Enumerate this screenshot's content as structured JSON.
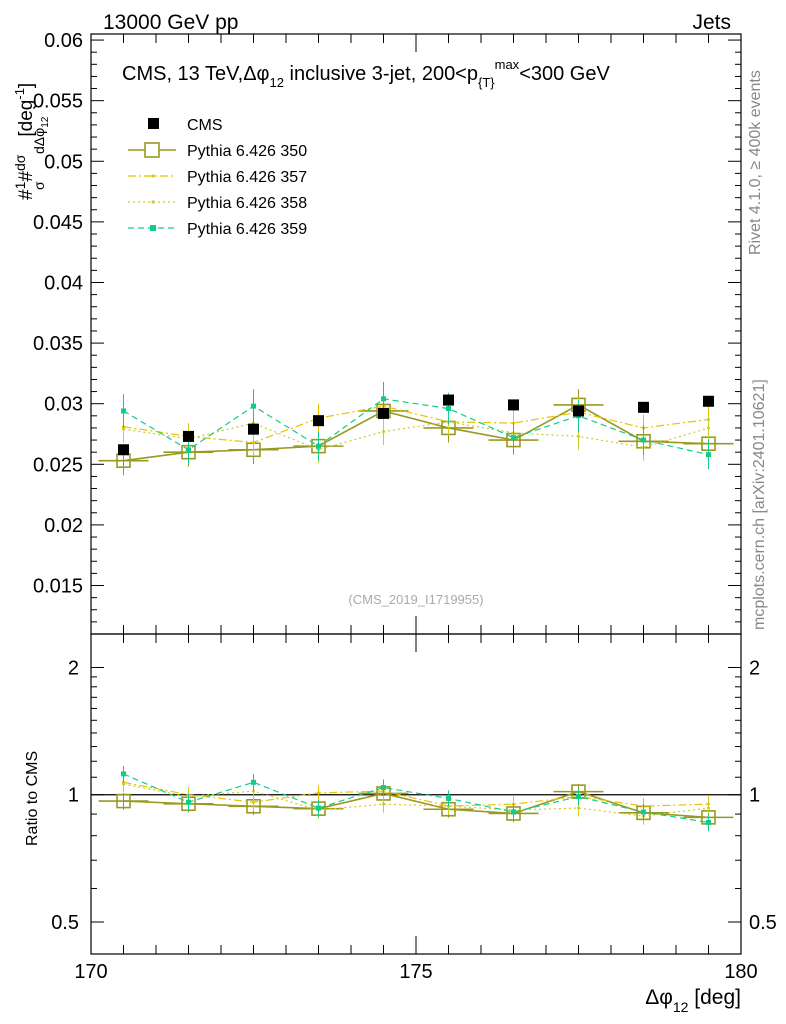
{
  "header": {
    "left": "13000 GeV pp",
    "right": "Jets"
  },
  "side_labels": {
    "rivet": "Rivet 4.1.0, ≥ 400k events",
    "mcplots": "mcplots.cern.ch [arXiv:2401.10621]"
  },
  "watermark": "(CMS_2019_I1719955)",
  "colors": {
    "cms": "#000000",
    "p350": "#999922",
    "p357": "#e6c200",
    "p358": "#cccc22",
    "p359": "#11cc88"
  },
  "chart_data": [
    {
      "type": "scatter",
      "panel": "main",
      "title": {
        "prefix": "CMS, 13 TeV,",
        "dphi": "Δφ",
        "sub12": "12",
        "mid": " inclusive 3-jet, 200<p",
        "subT": "{T}",
        "supmax": "max",
        "suffix": "<300 GeV"
      },
      "ylabel": {
        "n1": "#",
        "frac1": "1",
        "sigma": "σ",
        "n2": "#",
        "dsigma": "dσ",
        "ddphi": "dΔφ",
        "sub12": "12",
        "unit": "[deg",
        "sup": "-1",
        "close": "]"
      },
      "xlim": [
        170,
        180
      ],
      "ylim": [
        0.011,
        0.0605
      ],
      "yticks": [
        0.015,
        0.02,
        0.025,
        0.03,
        0.035,
        0.04,
        0.045,
        0.05,
        0.055,
        0.06
      ],
      "ytick_labels": [
        "0.015",
        "0.02",
        "0.025",
        "0.03",
        "0.035",
        "0.04",
        "0.045",
        "0.05",
        "0.055",
        "0.06"
      ],
      "x": [
        170.5,
        171.5,
        172.5,
        173.5,
        174.5,
        175.5,
        176.5,
        177.5,
        178.5,
        179.5
      ],
      "legend": {
        "position": "top-left",
        "entries": [
          "CMS",
          "Pythia 6.426 350",
          "Pythia 6.426 357",
          "Pythia 6.426 358",
          "Pythia 6.426 359"
        ]
      },
      "series": [
        {
          "name": "CMS",
          "key": "cms",
          "style": "marker",
          "values": [
            0.0262,
            0.0273,
            0.0279,
            0.0286,
            0.0292,
            0.0303,
            0.0299,
            0.0294,
            0.0297,
            0.0302
          ],
          "err": [
            0.0003,
            0.0003,
            0.0003,
            0.0003,
            0.0003,
            0.0003,
            0.0003,
            0.0003,
            0.0003,
            0.0003
          ]
        },
        {
          "name": "Pythia 6.426 350",
          "key": "p350",
          "style": "open-square",
          "values": [
            0.0253,
            0.026,
            0.0262,
            0.0265,
            0.0294,
            0.028,
            0.027,
            0.0299,
            0.0269,
            0.0267
          ],
          "err": [
            0.0012,
            0.0012,
            0.0012,
            0.0012,
            0.0012,
            0.0012,
            0.0012,
            0.0013,
            0.0012,
            0.0012
          ]
        },
        {
          "name": "Pythia 6.426 357",
          "key": "p357",
          "style": "dash-dot",
          "values": [
            0.0281,
            0.0273,
            0.0268,
            0.0288,
            0.0298,
            0.0285,
            0.0284,
            0.0293,
            0.028,
            0.0287
          ],
          "err": [
            0.0011,
            0.0011,
            0.0011,
            0.0012,
            0.0012,
            0.0011,
            0.0011,
            0.0012,
            0.0011,
            0.0012
          ]
        },
        {
          "name": "Pythia 6.426 358",
          "key": "p358",
          "style": "dotted",
          "values": [
            0.0279,
            0.0271,
            0.0284,
            0.0262,
            0.0277,
            0.0285,
            0.0276,
            0.0273,
            0.0264,
            0.028
          ],
          "err": [
            0.0011,
            0.0011,
            0.0011,
            0.0011,
            0.0011,
            0.0011,
            0.0011,
            0.0011,
            0.0011,
            0.0011
          ]
        },
        {
          "name": "Pythia 6.426 359",
          "key": "p359",
          "style": "dashed",
          "values": [
            0.0294,
            0.0262,
            0.0298,
            0.0265,
            0.0304,
            0.0296,
            0.0272,
            0.029,
            0.027,
            0.0258
          ],
          "err": [
            0.0014,
            0.0012,
            0.0014,
            0.0012,
            0.0014,
            0.0013,
            0.0012,
            0.0013,
            0.0012,
            0.0012
          ]
        }
      ]
    },
    {
      "type": "scatter",
      "panel": "ratio",
      "ylabel": "Ratio to CMS",
      "xlabel": {
        "dphi": "Δφ",
        "sub12": "12",
        "unit": " [deg]"
      },
      "xlim": [
        170,
        180
      ],
      "ylim": [
        0.42,
        2.4
      ],
      "yscale": "log",
      "xticks": [
        170,
        175,
        180
      ],
      "xtick_labels": [
        "170",
        "175",
        "180"
      ],
      "yticks": [
        0.5,
        1,
        2
      ],
      "ytick_labels": [
        "0.5",
        "1",
        "2"
      ],
      "reference_line": 1,
      "x": [
        170.5,
        171.5,
        172.5,
        173.5,
        174.5,
        175.5,
        176.5,
        177.5,
        178.5,
        179.5
      ],
      "series": [
        {
          "name": "Pythia 6.426 350",
          "key": "p350",
          "style": "open-square",
          "values": [
            0.966,
            0.952,
            0.939,
            0.927,
            1.007,
            0.924,
            0.903,
            1.017,
            0.906,
            0.884
          ],
          "err": [
            0.045,
            0.044,
            0.043,
            0.042,
            0.045,
            0.042,
            0.042,
            0.045,
            0.041,
            0.041
          ]
        },
        {
          "name": "Pythia 6.426 357",
          "key": "p357",
          "style": "dash-dot",
          "values": [
            1.07,
            1.0,
            0.96,
            1.01,
            1.02,
            0.94,
            0.95,
            0.99,
            0.94,
            0.95
          ],
          "err": [
            0.045,
            0.044,
            0.043,
            0.043,
            0.044,
            0.042,
            0.042,
            0.043,
            0.042,
            0.042
          ]
        },
        {
          "name": "Pythia 6.426 358",
          "key": "p358",
          "style": "dotted",
          "values": [
            1.06,
            0.99,
            1.02,
            0.92,
            0.95,
            0.94,
            0.92,
            0.93,
            0.89,
            0.93
          ],
          "err": [
            0.045,
            0.044,
            0.044,
            0.042,
            0.043,
            0.042,
            0.042,
            0.042,
            0.041,
            0.042
          ]
        },
        {
          "name": "Pythia 6.426 359",
          "key": "p359",
          "style": "dashed",
          "values": [
            1.12,
            0.96,
            1.07,
            0.93,
            1.04,
            0.98,
            0.91,
            0.99,
            0.91,
            0.86
          ],
          "err": [
            0.05,
            0.045,
            0.048,
            0.043,
            0.047,
            0.044,
            0.042,
            0.044,
            0.042,
            0.041
          ]
        }
      ]
    }
  ]
}
